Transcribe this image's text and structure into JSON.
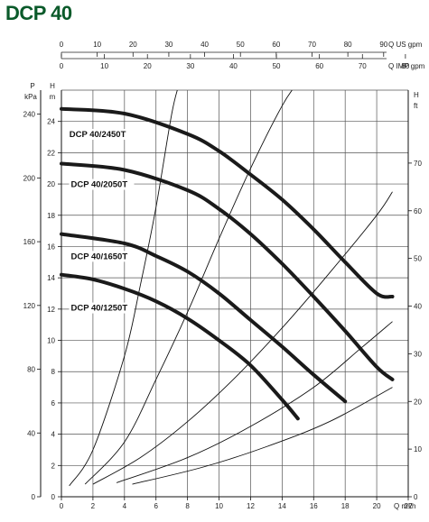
{
  "title": "DCP 40",
  "chart_data": {
    "type": "line",
    "xlabel": "Q m³/h",
    "xlim": [
      0,
      22
    ],
    "x_ticks": [
      "0",
      "2",
      "4",
      "6",
      "8",
      "10",
      "12",
      "14",
      "16",
      "18",
      "20",
      "22"
    ],
    "ylabel_left_h": "H",
    "ylabel_left_h_unit": "m",
    "ylim": [
      0,
      26
    ],
    "y_ticks": [
      "0",
      "2",
      "4",
      "6",
      "8",
      "10",
      "12",
      "14",
      "16",
      "18",
      "20",
      "22",
      "24"
    ],
    "ylabel_left_p": "P",
    "ylabel_left_p_unit": "kPa",
    "p_ticks": [
      "0",
      "40",
      "80",
      "120",
      "160",
      "200",
      "240"
    ],
    "ylabel_right": "H",
    "ylabel_right_unit": "ft",
    "ft_ticks": [
      "0",
      "10",
      "20",
      "30",
      "40",
      "50",
      "60",
      "70"
    ],
    "top_axis_us": {
      "label": "Q US gpm",
      "ticks": [
        "0",
        "10",
        "20",
        "30",
        "40",
        "50",
        "60",
        "70",
        "80",
        "90"
      ]
    },
    "top_axis_imp": {
      "label": "Q IMP gpm",
      "ticks": [
        "0",
        "10",
        "20",
        "30",
        "40",
        "50",
        "60",
        "70",
        "80"
      ]
    },
    "series": [
      {
        "name": "DCP 40/2450T",
        "x": [
          0,
          4,
          8,
          10,
          12,
          14,
          16,
          18,
          20,
          21
        ],
        "y": [
          24.8,
          24.5,
          23.2,
          22.1,
          20.6,
          19.0,
          17.1,
          15.0,
          13.0,
          12.8
        ]
      },
      {
        "name": "DCP 40/2050T",
        "x": [
          0,
          4,
          8,
          10,
          12,
          14,
          16,
          18,
          20,
          21
        ],
        "y": [
          21.3,
          20.9,
          19.6,
          18.4,
          16.8,
          14.9,
          12.8,
          10.6,
          8.3,
          7.5
        ]
      },
      {
        "name": "DCP 40/1650T",
        "x": [
          0,
          4,
          6,
          8,
          10,
          12,
          14,
          16,
          18
        ],
        "y": [
          16.8,
          16.2,
          15.4,
          14.4,
          13.0,
          11.3,
          9.6,
          7.8,
          6.1
        ]
      },
      {
        "name": "DCP 40/1250T",
        "x": [
          0,
          2,
          4,
          6,
          8,
          10,
          12,
          14,
          15
        ],
        "y": [
          14.2,
          13.9,
          13.3,
          12.5,
          11.4,
          10.0,
          8.4,
          6.2,
          5.0
        ]
      }
    ],
    "system_curves": [
      {
        "x": [
          0.5,
          2,
          4,
          5,
          6,
          7,
          7.5
        ],
        "y": [
          0.7,
          3,
          9,
          13.5,
          18.5,
          24.5,
          26.5
        ]
      },
      {
        "x": [
          1.5,
          4,
          6,
          8,
          10,
          12,
          14,
          15
        ],
        "y": [
          0.8,
          3.5,
          7.5,
          11.8,
          16.5,
          21.0,
          25.0,
          26.5
        ]
      },
      {
        "x": [
          2,
          5,
          8,
          11,
          14,
          17,
          20,
          21
        ],
        "y": [
          0.8,
          2.5,
          4.8,
          7.6,
          10.8,
          14.3,
          18.0,
          19.5
        ]
      },
      {
        "x": [
          3.5,
          8,
          12,
          16,
          19,
          21
        ],
        "y": [
          0.9,
          2.5,
          4.5,
          7.0,
          9.5,
          11.2
        ]
      },
      {
        "x": [
          4.5,
          9,
          13,
          17,
          21
        ],
        "y": [
          0.8,
          1.9,
          3.2,
          4.8,
          7.0
        ]
      }
    ],
    "grid": true
  }
}
